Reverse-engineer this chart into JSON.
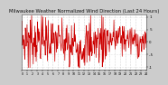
{
  "title": "Milwaukee Weather Normalized Wind Direction (Last 24 Hours)",
  "background_color": "#cccccc",
  "plot_bg_color": "#ffffff",
  "line_color": "#cc0000",
  "line_width": 0.5,
  "ylim": [
    -1.1,
    1.1
  ],
  "yticks": [
    -1.0,
    -0.5,
    0.0,
    0.5,
    1.0
  ],
  "ytick_labels": [
    "-1",
    "-.5",
    "0",
    ".5",
    "1"
  ],
  "num_points": 300,
  "grid_color": "#aaaaaa",
  "title_fontsize": 3.8,
  "tick_fontsize": 2.8,
  "seed": 7
}
